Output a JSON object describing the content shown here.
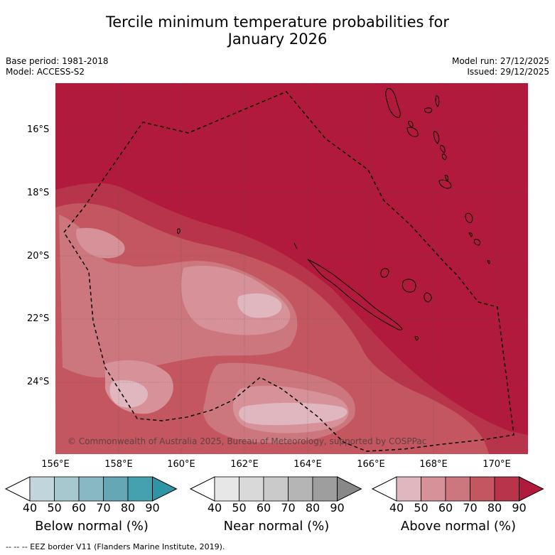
{
  "title": {
    "line1": "Tercile minimum temperature probabilities for",
    "line2": "January 2026"
  },
  "meta": {
    "base_period": "Base period: 1981-2018",
    "model": "Model: ACCESS-S2",
    "model_run": "Model run: 27/12/2025",
    "issued": "Issued: 29/12/2025"
  },
  "map": {
    "lat_labels": [
      "16°S",
      "18°S",
      "20°S",
      "22°S",
      "24°S"
    ],
    "lon_labels": [
      "156°E",
      "158°E",
      "160°E",
      "162°E",
      "164°E",
      "166°E",
      "168°E",
      "170°E"
    ],
    "copyright": "© Commonwealth of Australia 2025, Bureau of Meteorology, supported by COSPPac"
  },
  "colorbars": [
    {
      "title": "Below normal (%)",
      "ticks": [
        "40",
        "50",
        "60",
        "70",
        "80",
        "90"
      ],
      "colors": [
        "#ffffff",
        "#c1d6dc",
        "#a6c8cf",
        "#88b8c3",
        "#66a7b5",
        "#46a1ae",
        "#2e95a7"
      ]
    },
    {
      "title": "Near normal (%)",
      "ticks": [
        "40",
        "50",
        "60",
        "70",
        "80",
        "90"
      ],
      "colors": [
        "#ffffff",
        "#e7e7e7",
        "#d9d9d9",
        "#cacaca",
        "#b5b5b5",
        "#9e9e9e",
        "#888888"
      ]
    },
    {
      "title": "Above normal (%)",
      "ticks": [
        "40",
        "50",
        "60",
        "70",
        "80",
        "90"
      ],
      "colors": [
        "#ffffff",
        "#e0b6bf",
        "#d69199",
        "#cc767e",
        "#c4565f",
        "#b8344a",
        "#b11a3c"
      ]
    }
  ],
  "footnote": "--  --  -- EEZ border V11 (Flanders Marine Institute, 2019)."
}
